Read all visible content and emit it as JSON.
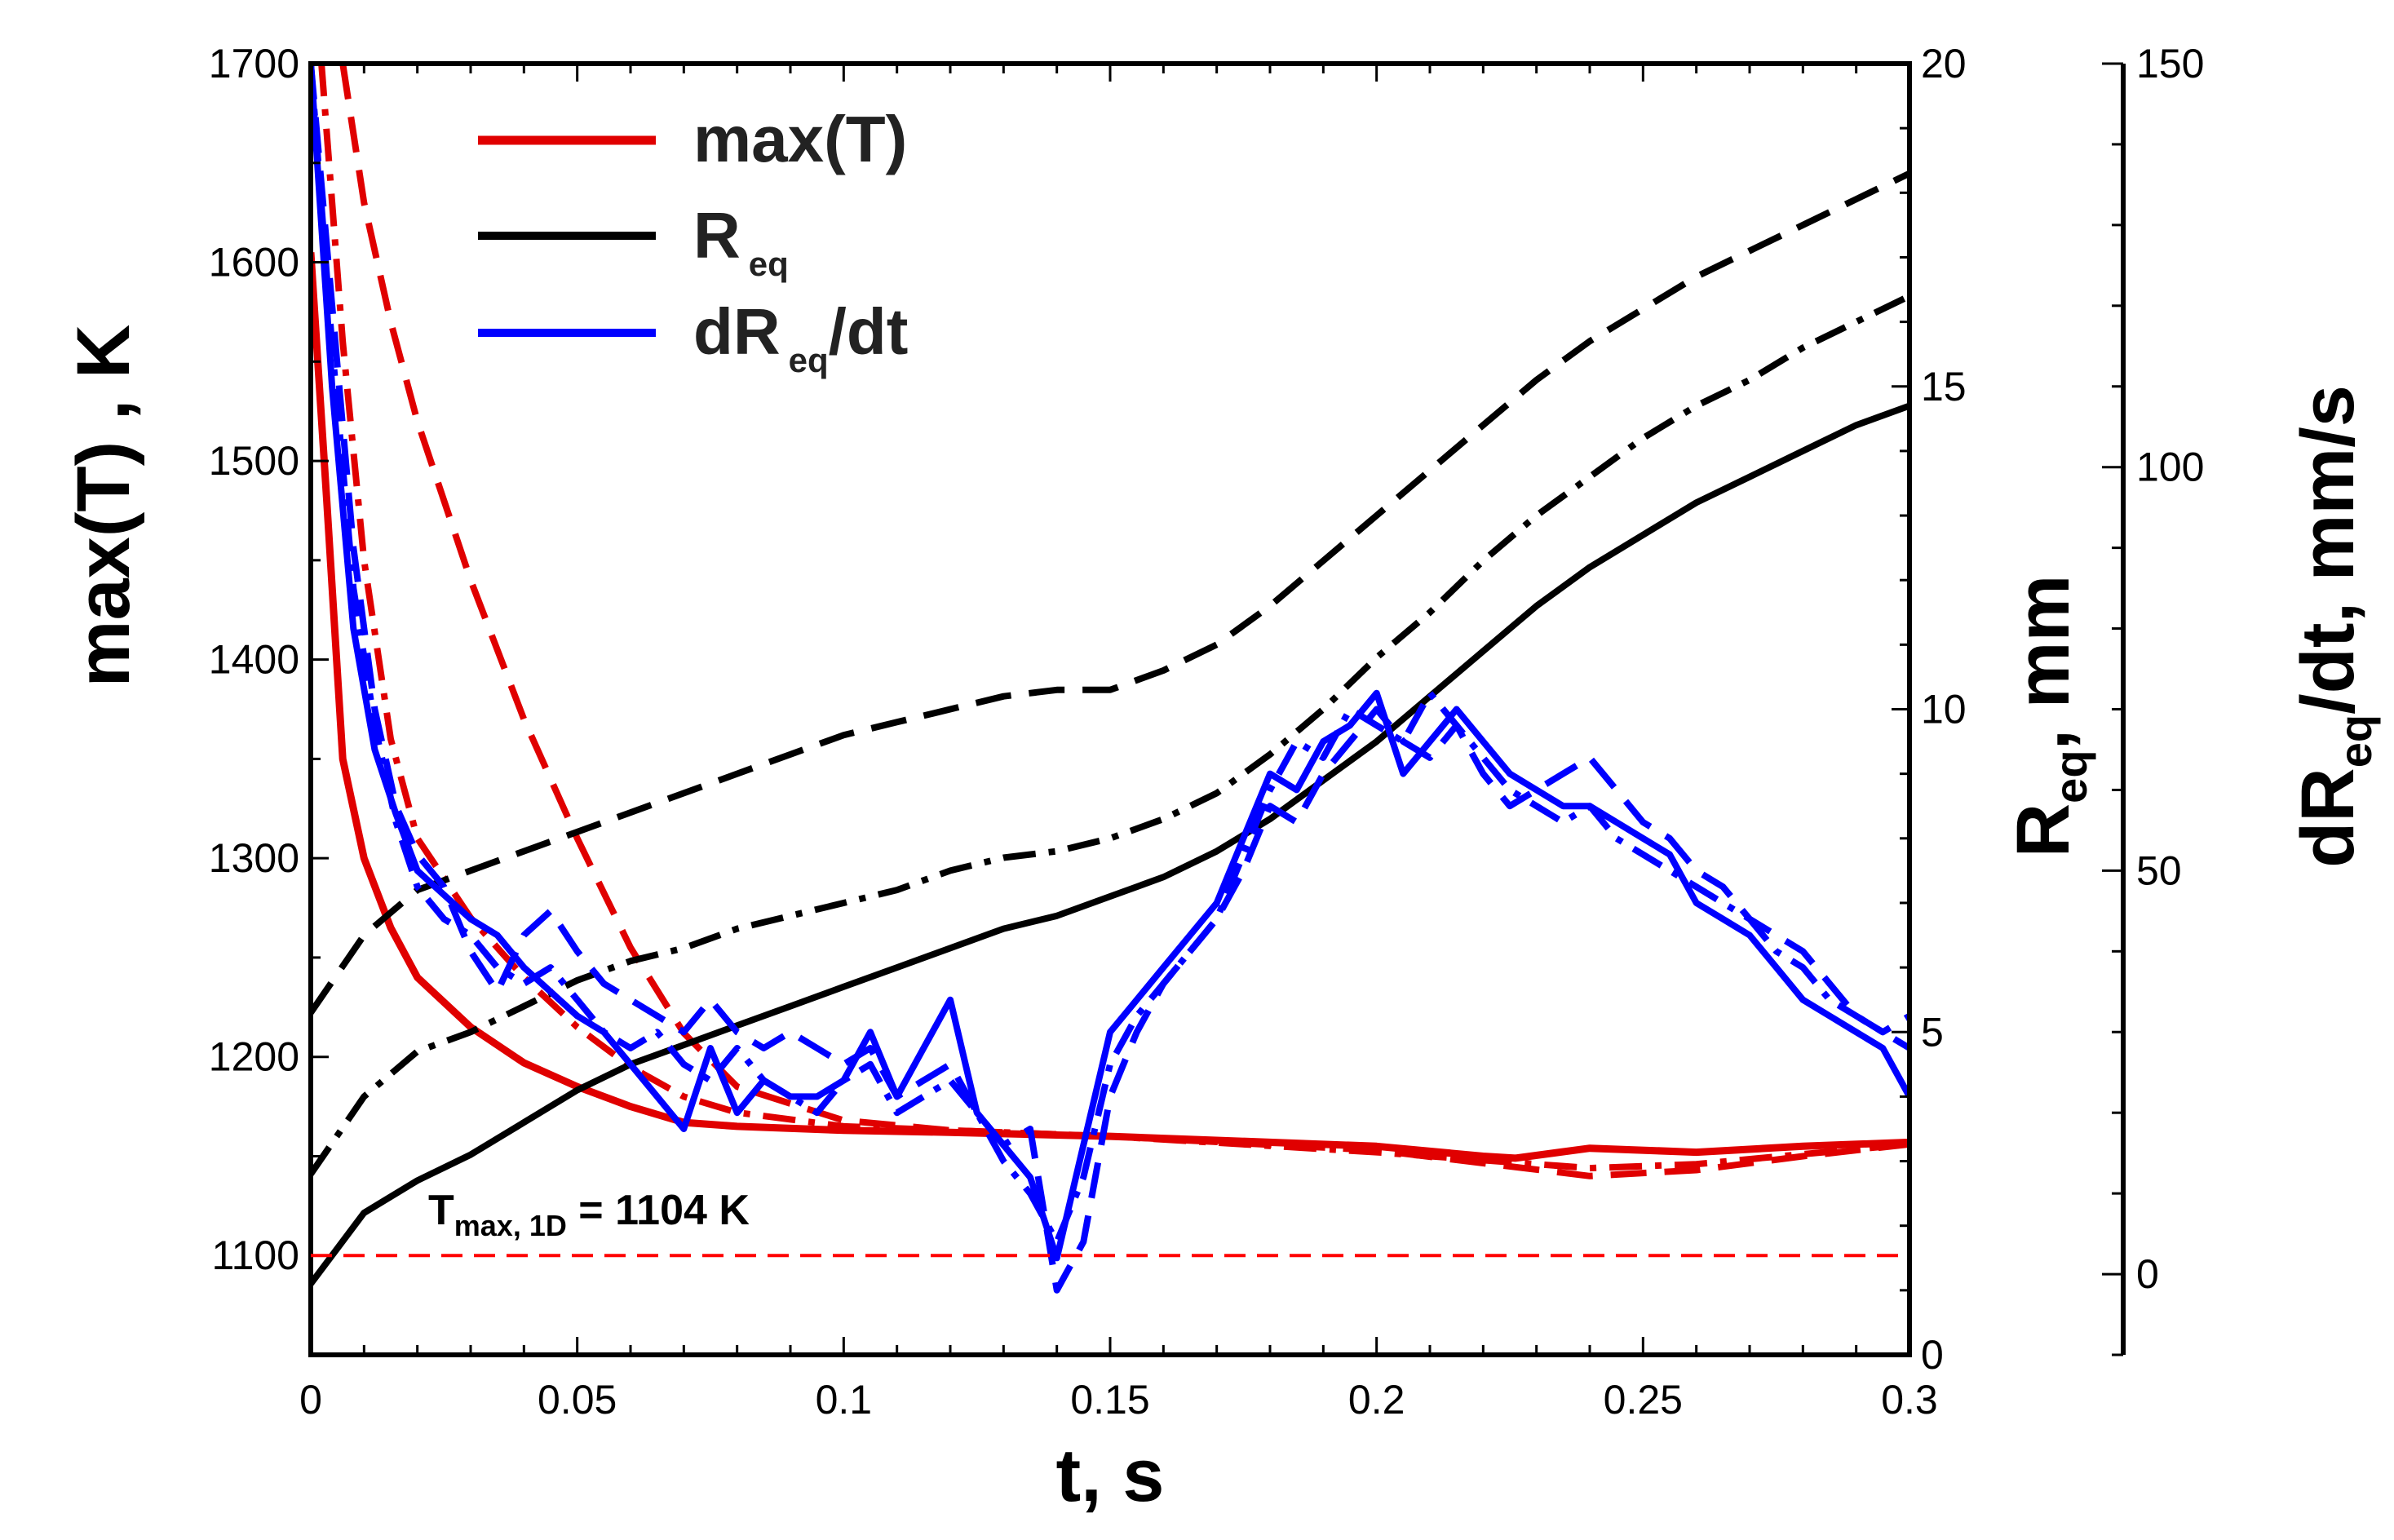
{
  "chart_data": {
    "type": "line",
    "x": {
      "label": "t, s",
      "range": [
        0,
        0.3
      ],
      "ticks": [
        0,
        0.05,
        0.1,
        0.15,
        0.2,
        0.25,
        0.3
      ],
      "tick_labels": [
        "0",
        "0.05",
        "0.1",
        "0.15",
        "0.2",
        "0.25",
        "0.3"
      ]
    },
    "y_left": {
      "label": "max(T) , K",
      "range": [
        1050,
        1700
      ],
      "ticks": [
        1100,
        1200,
        1300,
        1400,
        1500,
        1600,
        1700
      ],
      "tick_labels": [
        "1100",
        "1200",
        "1300",
        "1400",
        "1500",
        "1600",
        "1700"
      ]
    },
    "y_right1": {
      "label_main": "R",
      "label_sub": "eq",
      "label_rest": ", mm",
      "range": [
        0,
        20
      ],
      "ticks": [
        0,
        5,
        10,
        15,
        20
      ],
      "tick_labels": [
        "0",
        "5",
        "10",
        "15",
        "20"
      ]
    },
    "y_right2": {
      "label_main": "dR",
      "label_sub": "eq",
      "label_rest": "/dt, mm/s",
      "range": [
        -10,
        150
      ],
      "ticks": [
        0,
        50,
        100,
        150
      ],
      "tick_labels": [
        "0",
        "50",
        "100",
        "150"
      ]
    },
    "legend": [
      {
        "main": "max(T)",
        "sub": "",
        "rest": "",
        "color": "#e00000"
      },
      {
        "main": "R",
        "sub": "eq",
        "rest": "",
        "color": "#000000"
      },
      {
        "main": "dR",
        "sub": "eq",
        "rest": "/dt",
        "color": "#0000ff"
      }
    ],
    "annotation": {
      "main": "T",
      "sub": "max, 1D",
      "rest": " = 1104 K",
      "value": 1100
    },
    "series": [
      {
        "name": "max(T) solid",
        "axis": "left",
        "color": "#e00000",
        "style": "solid",
        "x": [
          0,
          0.003,
          0.006,
          0.01,
          0.015,
          0.02,
          0.03,
          0.04,
          0.05,
          0.06,
          0.07,
          0.08,
          0.1,
          0.12,
          0.15,
          0.2,
          0.22,
          0.226,
          0.24,
          0.26,
          0.28,
          0.3
        ],
        "y": [
          1605,
          1480,
          1350,
          1300,
          1265,
          1240,
          1215,
          1197,
          1185,
          1175,
          1167,
          1165,
          1163,
          1162,
          1160,
          1155,
          1150,
          1149,
          1154,
          1152,
          1155,
          1157
        ]
      },
      {
        "name": "max(T) dashed",
        "axis": "left",
        "color": "#e00000",
        "style": "dashed",
        "x": [
          0.006,
          0.01,
          0.015,
          0.02,
          0.03,
          0.04,
          0.05,
          0.06,
          0.07,
          0.08,
          0.1,
          0.12,
          0.15,
          0.2,
          0.24,
          0.26,
          0.28,
          0.3
        ],
        "y": [
          1700,
          1630,
          1570,
          1520,
          1440,
          1370,
          1310,
          1255,
          1212,
          1185,
          1168,
          1163,
          1160,
          1153,
          1140,
          1143,
          1150,
          1156
        ]
      },
      {
        "name": "max(T) dash-dot",
        "axis": "left",
        "color": "#e00000",
        "style": "dashdot",
        "x": [
          0.002,
          0.006,
          0.01,
          0.015,
          0.02,
          0.03,
          0.04,
          0.05,
          0.06,
          0.07,
          0.08,
          0.1,
          0.15,
          0.2,
          0.24,
          0.26,
          0.3
        ],
        "y": [
          1700,
          1560,
          1450,
          1360,
          1310,
          1270,
          1240,
          1215,
          1195,
          1180,
          1172,
          1165,
          1160,
          1152,
          1144,
          1146,
          1156
        ]
      },
      {
        "name": "R solid",
        "axis": "right1",
        "color": "#000000",
        "style": "solid",
        "x": [
          0,
          0.01,
          0.02,
          0.03,
          0.04,
          0.05,
          0.06,
          0.07,
          0.08,
          0.09,
          0.1,
          0.11,
          0.12,
          0.13,
          0.14,
          0.15,
          0.16,
          0.17,
          0.18,
          0.19,
          0.2,
          0.21,
          0.22,
          0.23,
          0.24,
          0.25,
          0.26,
          0.27,
          0.28,
          0.29,
          0.3
        ],
        "y": [
          1.1,
          2.2,
          2.7,
          3.1,
          3.6,
          4.1,
          4.5,
          4.8,
          5.1,
          5.4,
          5.7,
          6.0,
          6.3,
          6.6,
          6.8,
          7.1,
          7.4,
          7.8,
          8.3,
          8.9,
          9.5,
          10.2,
          10.9,
          11.6,
          12.2,
          12.7,
          13.2,
          13.6,
          14.0,
          14.4,
          14.7
        ]
      },
      {
        "name": "R dashed",
        "axis": "right1",
        "color": "#000000",
        "style": "dashed",
        "x": [
          0,
          0.01,
          0.02,
          0.03,
          0.04,
          0.05,
          0.06,
          0.07,
          0.08,
          0.09,
          0.1,
          0.11,
          0.12,
          0.13,
          0.14,
          0.15,
          0.16,
          0.17,
          0.18,
          0.19,
          0.2,
          0.21,
          0.22,
          0.23,
          0.24,
          0.25,
          0.26,
          0.27,
          0.28,
          0.29,
          0.3
        ],
        "y": [
          5.3,
          6.5,
          7.2,
          7.5,
          7.8,
          8.1,
          8.4,
          8.7,
          9.0,
          9.3,
          9.6,
          9.8,
          10.0,
          10.2,
          10.3,
          10.3,
          10.6,
          11.0,
          11.6,
          12.3,
          13.0,
          13.7,
          14.4,
          15.1,
          15.7,
          16.2,
          16.7,
          17.1,
          17.5,
          17.9,
          18.3
        ]
      },
      {
        "name": "R dash-dot",
        "axis": "right1",
        "color": "#000000",
        "style": "dashdot",
        "x": [
          0,
          0.01,
          0.02,
          0.03,
          0.04,
          0.05,
          0.06,
          0.07,
          0.08,
          0.09,
          0.1,
          0.11,
          0.12,
          0.13,
          0.14,
          0.15,
          0.16,
          0.17,
          0.18,
          0.19,
          0.2,
          0.21,
          0.22,
          0.23,
          0.24,
          0.25,
          0.26,
          0.27,
          0.28,
          0.29,
          0.3
        ],
        "y": [
          2.8,
          4.0,
          4.7,
          5.0,
          5.4,
          5.8,
          6.1,
          6.3,
          6.6,
          6.8,
          7.0,
          7.2,
          7.5,
          7.7,
          7.8,
          8.0,
          8.3,
          8.7,
          9.3,
          10.0,
          10.8,
          11.5,
          12.3,
          13.0,
          13.6,
          14.2,
          14.7,
          15.1,
          15.6,
          16.0,
          16.4
        ]
      },
      {
        "name": "dR/dt solid",
        "axis": "right2",
        "color": "#0000ff",
        "style": "solid",
        "x": [
          0,
          0.004,
          0.008,
          0.012,
          0.016,
          0.02,
          0.025,
          0.03,
          0.035,
          0.04,
          0.045,
          0.05,
          0.055,
          0.06,
          0.065,
          0.07,
          0.075,
          0.08,
          0.085,
          0.09,
          0.095,
          0.1,
          0.105,
          0.11,
          0.115,
          0.12,
          0.125,
          0.13,
          0.135,
          0.14,
          0.145,
          0.15,
          0.155,
          0.16,
          0.165,
          0.17,
          0.175,
          0.18,
          0.185,
          0.19,
          0.195,
          0.2,
          0.205,
          0.21,
          0.215,
          0.22,
          0.225,
          0.23,
          0.235,
          0.24,
          0.245,
          0.25,
          0.255,
          0.26,
          0.265,
          0.27,
          0.275,
          0.28,
          0.285,
          0.29,
          0.295,
          0.3
        ],
        "y": [
          150,
          110,
          80,
          65,
          57,
          50,
          47,
          44,
          42,
          38,
          35,
          32,
          30,
          26,
          22,
          18,
          28,
          20,
          24,
          22,
          22,
          24,
          30,
          22,
          28,
          34,
          20,
          16,
          12,
          2,
          16,
          30,
          34,
          38,
          42,
          46,
          54,
          62,
          60,
          66,
          68,
          72,
          62,
          66,
          70,
          66,
          62,
          60,
          58,
          58,
          56,
          54,
          52,
          46,
          44,
          42,
          38,
          34,
          32,
          30,
          28,
          22
        ]
      },
      {
        "name": "dR/dt dashed",
        "axis": "right2",
        "color": "#0000ff",
        "style": "dashed",
        "x": [
          0,
          0.004,
          0.008,
          0.012,
          0.016,
          0.02,
          0.025,
          0.03,
          0.035,
          0.04,
          0.045,
          0.05,
          0.055,
          0.06,
          0.065,
          0.07,
          0.075,
          0.08,
          0.085,
          0.09,
          0.095,
          0.1,
          0.105,
          0.11,
          0.115,
          0.12,
          0.125,
          0.13,
          0.135,
          0.14,
          0.145,
          0.15,
          0.155,
          0.16,
          0.165,
          0.17,
          0.175,
          0.18,
          0.185,
          0.19,
          0.195,
          0.2,
          0.205,
          0.21,
          0.215,
          0.22,
          0.225,
          0.23,
          0.235,
          0.24,
          0.245,
          0.25,
          0.255,
          0.26,
          0.265,
          0.27,
          0.275,
          0.28,
          0.285,
          0.29,
          0.295,
          0.3
        ],
        "y": [
          150,
          120,
          90,
          70,
          58,
          52,
          48,
          40,
          35,
          42,
          45,
          40,
          36,
          34,
          32,
          30,
          34,
          30,
          28,
          30,
          28,
          26,
          28,
          22,
          24,
          26,
          20,
          16,
          18,
          -2,
          4,
          22,
          30,
          36,
          40,
          44,
          50,
          58,
          56,
          62,
          66,
          70,
          66,
          64,
          68,
          62,
          58,
          60,
          62,
          64,
          60,
          56,
          54,
          50,
          48,
          44,
          42,
          40,
          36,
          32,
          30,
          32
        ]
      },
      {
        "name": "dR/dt dash-dot",
        "axis": "right2",
        "color": "#0000ff",
        "style": "dashdot",
        "x": [
          0,
          0.004,
          0.008,
          0.012,
          0.016,
          0.02,
          0.025,
          0.03,
          0.035,
          0.04,
          0.045,
          0.05,
          0.055,
          0.06,
          0.065,
          0.07,
          0.075,
          0.08,
          0.085,
          0.09,
          0.095,
          0.1,
          0.105,
          0.11,
          0.115,
          0.12,
          0.125,
          0.13,
          0.135,
          0.14,
          0.145,
          0.15,
          0.155,
          0.16,
          0.165,
          0.17,
          0.175,
          0.18,
          0.185,
          0.19,
          0.195,
          0.2,
          0.205,
          0.21,
          0.215,
          0.22,
          0.225,
          0.23,
          0.235,
          0.24,
          0.245,
          0.25,
          0.255,
          0.26,
          0.265,
          0.27,
          0.275,
          0.28,
          0.285,
          0.29,
          0.295,
          0.3
        ],
        "y": [
          150,
          115,
          85,
          68,
          56,
          48,
          44,
          42,
          38,
          36,
          38,
          34,
          30,
          28,
          30,
          26,
          24,
          28,
          24,
          22,
          20,
          24,
          26,
          20,
          22,
          24,
          20,
          14,
          10,
          4,
          12,
          26,
          32,
          36,
          40,
          44,
          52,
          60,
          66,
          64,
          70,
          68,
          66,
          72,
          68,
          64,
          60,
          58,
          56,
          58,
          54,
          52,
          50,
          48,
          46,
          44,
          40,
          38,
          34,
          32,
          30,
          28
        ]
      }
    ]
  }
}
